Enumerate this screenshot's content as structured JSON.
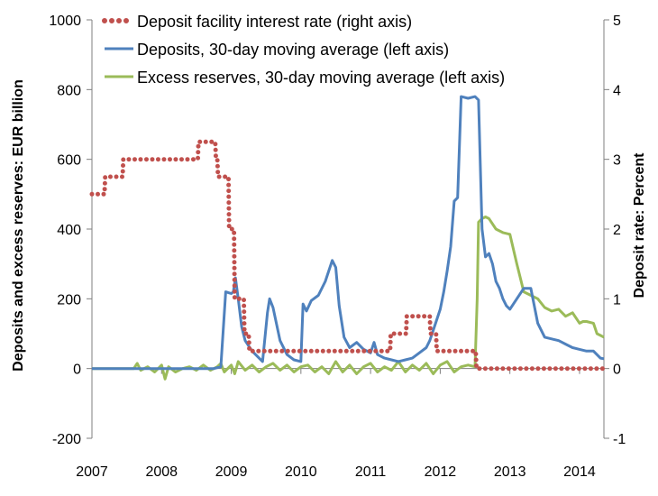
{
  "chart_data": {
    "type": "line",
    "title": "",
    "x_ticks": [
      "2007",
      "2008",
      "2009",
      "2010",
      "2011",
      "2012",
      "2013",
      "2014"
    ],
    "x_range": [
      2007.0,
      2014.35
    ],
    "left_axis": {
      "label": "Deposits and excess reserves: EUR billion",
      "ticks": [
        "-200",
        "0",
        "200",
        "400",
        "600",
        "800",
        "1000"
      ],
      "range": [
        -200,
        1000
      ]
    },
    "right_axis": {
      "label": "Deposit rate: Percent",
      "ticks": [
        "-1",
        "0",
        "1",
        "2",
        "3",
        "4",
        "5"
      ],
      "range": [
        -1,
        5
      ]
    },
    "grid": false,
    "legend_position": "top-center",
    "series": [
      {
        "name": "Deposit facility interest rate (right axis)",
        "axis": "right",
        "style": "dotted",
        "color": "#c0504d",
        "x": [
          2007.0,
          2007.18,
          2007.19,
          2007.44,
          2007.45,
          2008.52,
          2008.53,
          2008.77,
          2008.78,
          2008.8,
          2008.81,
          2008.96,
          2008.97,
          2009.04,
          2009.05,
          2009.18,
          2009.19,
          2009.25,
          2009.26,
          2009.32,
          2009.33,
          2011.28,
          2011.29,
          2011.51,
          2011.52,
          2011.85,
          2011.86,
          2011.94,
          2011.95,
          2012.51,
          2012.52,
          2014.35
        ],
        "y": [
          2.5,
          2.5,
          2.75,
          2.75,
          3.0,
          3.0,
          3.25,
          3.25,
          3.0,
          3.0,
          2.75,
          2.75,
          2.0,
          2.0,
          1.0,
          1.0,
          0.5,
          0.5,
          0.25,
          0.25,
          0.25,
          0.25,
          0.5,
          0.5,
          0.75,
          0.75,
          0.5,
          0.5,
          0.25,
          0.25,
          0.0,
          0.0
        ]
      },
      {
        "name": "Deposits, 30-day moving average (left axis)",
        "axis": "left",
        "style": "solid",
        "color": "#4f81bd",
        "x": [
          2007.0,
          2008.75,
          2008.85,
          2008.92,
          2009.0,
          2009.03,
          2009.06,
          2009.1,
          2009.15,
          2009.2,
          2009.3,
          2009.45,
          2009.52,
          2009.55,
          2009.6,
          2009.7,
          2009.8,
          2009.9,
          2010.0,
          2010.03,
          2010.08,
          2010.15,
          2010.25,
          2010.35,
          2010.45,
          2010.5,
          2010.55,
          2010.62,
          2010.7,
          2010.8,
          2010.9,
          2011.0,
          2011.05,
          2011.1,
          2011.2,
          2011.3,
          2011.4,
          2011.5,
          2011.6,
          2011.7,
          2011.8,
          2011.85,
          2011.9,
          2012.0,
          2012.05,
          2012.1,
          2012.15,
          2012.2,
          2012.25,
          2012.3,
          2012.4,
          2012.5,
          2012.55,
          2012.6,
          2012.65,
          2012.7,
          2012.75,
          2012.8,
          2012.85,
          2012.9,
          2012.95,
          2013.0,
          2013.1,
          2013.2,
          2013.3,
          2013.4,
          2013.5,
          2013.6,
          2013.7,
          2013.8,
          2013.9,
          2014.0,
          2014.1,
          2014.2,
          2014.3,
          2014.35
        ],
        "y": [
          0,
          0,
          5,
          220,
          215,
          220,
          260,
          200,
          120,
          80,
          50,
          20,
          160,
          200,
          175,
          80,
          40,
          25,
          20,
          185,
          165,
          195,
          210,
          250,
          310,
          290,
          180,
          90,
          60,
          75,
          55,
          45,
          75,
          40,
          30,
          25,
          20,
          25,
          30,
          45,
          60,
          80,
          110,
          170,
          220,
          280,
          350,
          480,
          490,
          780,
          775,
          780,
          770,
          400,
          320,
          330,
          300,
          250,
          230,
          200,
          180,
          170,
          200,
          230,
          230,
          130,
          90,
          85,
          80,
          70,
          60,
          55,
          50,
          50,
          30,
          28
        ]
      },
      {
        "name": "Excess reserves, 30-day moving average (left axis)",
        "axis": "left",
        "style": "solid",
        "color": "#9bbb59",
        "x": [
          2007.0,
          2007.6,
          2007.65,
          2007.7,
          2007.8,
          2007.9,
          2008.0,
          2008.05,
          2008.1,
          2008.2,
          2008.3,
          2008.4,
          2008.5,
          2008.6,
          2008.7,
          2008.8,
          2008.85,
          2008.9,
          2009.0,
          2009.05,
          2009.1,
          2009.2,
          2009.3,
          2009.4,
          2009.5,
          2009.6,
          2009.7,
          2009.8,
          2009.9,
          2010.0,
          2010.1,
          2010.2,
          2010.3,
          2010.4,
          2010.5,
          2010.6,
          2010.7,
          2010.8,
          2010.9,
          2011.0,
          2011.1,
          2011.2,
          2011.3,
          2011.4,
          2011.5,
          2011.6,
          2011.7,
          2011.8,
          2011.9,
          2012.0,
          2012.1,
          2012.2,
          2012.3,
          2012.4,
          2012.5,
          2012.53,
          2012.55,
          2012.6,
          2012.65,
          2012.7,
          2012.8,
          2012.9,
          2013.0,
          2013.1,
          2013.2,
          2013.3,
          2013.4,
          2013.5,
          2013.6,
          2013.7,
          2013.8,
          2013.9,
          2014.0,
          2014.05,
          2014.1,
          2014.2,
          2014.25,
          2014.3,
          2014.35
        ],
        "y": [
          0,
          0,
          15,
          -5,
          5,
          -10,
          10,
          -30,
          5,
          -10,
          0,
          5,
          -5,
          10,
          -5,
          5,
          15,
          -10,
          10,
          -15,
          20,
          -5,
          10,
          -10,
          5,
          15,
          -5,
          10,
          -10,
          5,
          10,
          -10,
          5,
          -15,
          20,
          -10,
          10,
          -15,
          5,
          15,
          -10,
          5,
          -5,
          20,
          -10,
          10,
          -5,
          15,
          -15,
          10,
          20,
          -10,
          5,
          10,
          5,
          200,
          420,
          430,
          435,
          430,
          400,
          390,
          385,
          300,
          220,
          210,
          200,
          175,
          165,
          170,
          150,
          160,
          130,
          135,
          135,
          130,
          100,
          95,
          90
        ]
      }
    ]
  }
}
